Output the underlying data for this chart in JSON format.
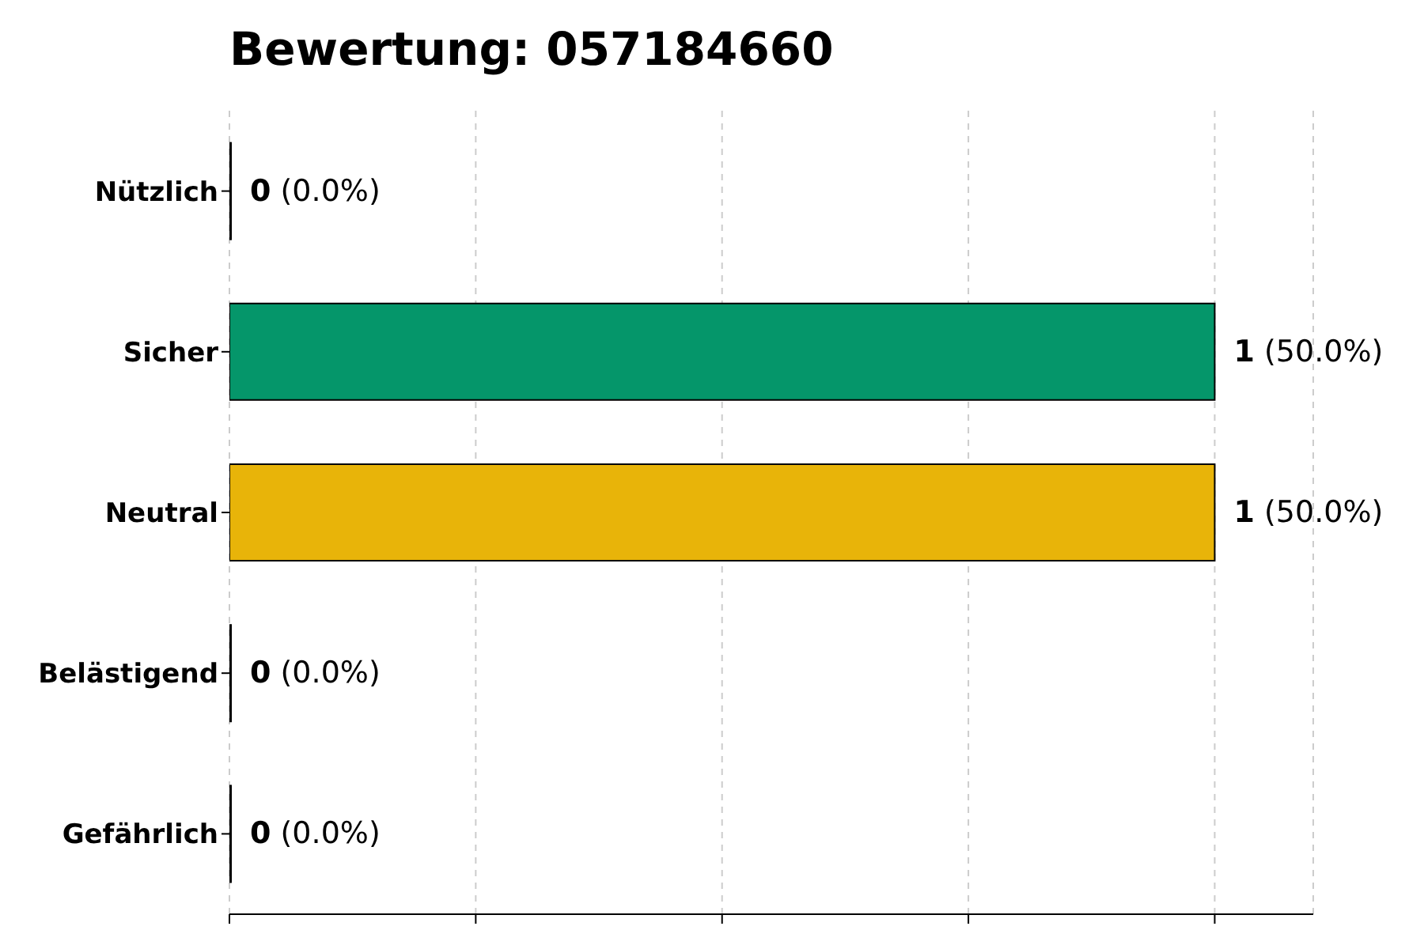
{
  "chart_data": {
    "type": "bar",
    "orientation": "horizontal",
    "title": "Bewertung: 057184660",
    "categories": [
      "Nützlich",
      "Sicher",
      "Neutral",
      "Belästigend",
      "Gefährlich"
    ],
    "values": [
      0,
      1,
      1,
      0,
      0
    ],
    "colors": [
      "#4caf50",
      "#05966a",
      "#e8b409",
      "#f08c00",
      "#d62728"
    ],
    "value_labels": [
      "0 (0.0%)",
      "1 (50.0%)",
      "1 (50.0%)",
      "0 (0.0%)",
      "0 (0.0%)"
    ],
    "xlim": [
      0,
      1.1
    ],
    "xticks": [
      {
        "value": 0,
        "label": null
      },
      {
        "value": 0.25,
        "label": null
      },
      {
        "value": 0.5,
        "label": null
      },
      {
        "value": 0.75,
        "label": null
      },
      {
        "value": 1,
        "label": null
      }
    ],
    "tick_labels": "y",
    "grid": "x",
    "legend": false
  }
}
